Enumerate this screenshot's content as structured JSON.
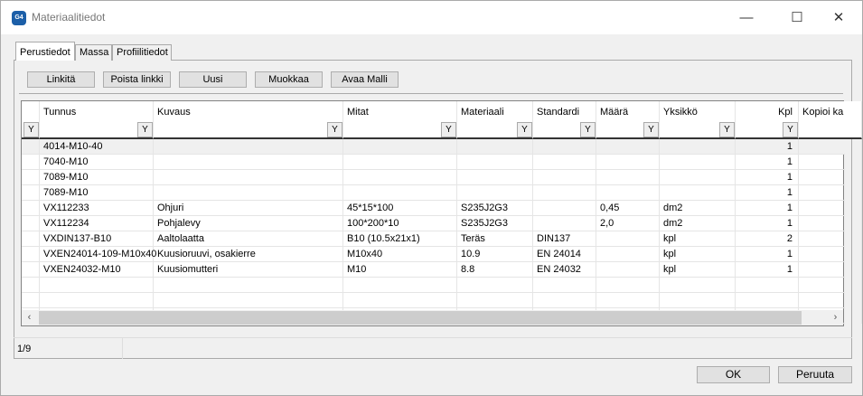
{
  "window": {
    "title": "Materiaalitiedot",
    "logo": "G4",
    "controls": [
      "minimize-icon",
      "maximize-icon",
      "close-icon"
    ]
  },
  "tabs": [
    {
      "label": "Perustiedot",
      "active": true
    },
    {
      "label": "Massa"
    },
    {
      "label": "Profiilitiedot"
    }
  ],
  "toolbar": [
    "Linkitä",
    "Poista linkki",
    "Uusi",
    "Muokkaa",
    "Avaa Malli"
  ],
  "table": {
    "columns": [
      "Tunnus",
      "Kuvaus",
      "Mitat",
      "Materiaali",
      "Standardi",
      "Määrä",
      "Yksikkö",
      "Kpl",
      "Kopioi ka"
    ],
    "rows": [
      [
        "4014-M10-40",
        "",
        "",
        "",
        "",
        "",
        "",
        "1",
        ""
      ],
      [
        "7040-M10",
        "",
        "",
        "",
        "",
        "",
        "",
        "1",
        ""
      ],
      [
        "7089-M10",
        "",
        "",
        "",
        "",
        "",
        "",
        "1",
        ""
      ],
      [
        "7089-M10",
        "",
        "",
        "",
        "",
        "",
        "",
        "1",
        ""
      ],
      [
        "VX112233",
        "Ohjuri",
        "45*15*100",
        "S235J2G3",
        "",
        "0,45",
        "dm2",
        "1",
        ""
      ],
      [
        "VX112234",
        "Pohjalevy",
        "100*200*10",
        "S235J2G3",
        "",
        "2,0",
        "dm2",
        "1",
        ""
      ],
      [
        "VXDIN137-B10",
        "Aaltolaatta",
        "B10 (10.5x21x1)",
        "Teräs",
        "DIN137",
        "",
        "kpl",
        "2",
        ""
      ],
      [
        "VXEN24014-109-M10x40",
        "Kuusioruuvi, osakierre",
        "M10x40",
        "10.9",
        "EN 24014",
        "",
        "kpl",
        "1",
        ""
      ],
      [
        "VXEN24032-M10",
        "Kuusiomutteri",
        "M10",
        "8.8",
        "EN 24032",
        "",
        "kpl",
        "1",
        ""
      ]
    ],
    "selected_row": 0
  },
  "status": {
    "record": "1/9"
  },
  "dialog": {
    "ok": "OK",
    "cancel": "Peruuta"
  }
}
